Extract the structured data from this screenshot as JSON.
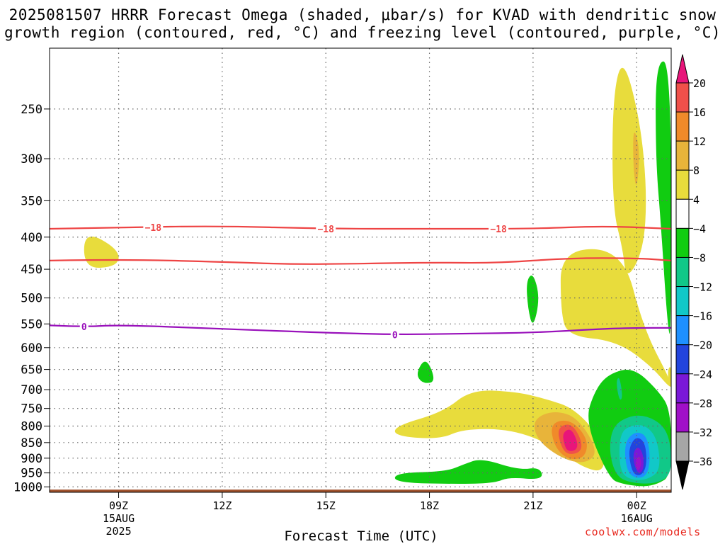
{
  "title": {
    "line1": "2025081507 HRRR Forecast Omega (shaded, μbar/s) for KVAD with dendritic snow",
    "line2": "growth region (contoured, red, °C) and freezing level (contoured, purple, °C)"
  },
  "credit": "coolwx.com/models",
  "chart_data": {
    "type": "time-height cross section",
    "title": "2025081507 HRRR Forecast Omega (shaded, μbar/s) for KVAD with dendritic snow growth region (contoured, red, °C) and freezing level (contoured, purple, °C)",
    "xlabel": "Forecast Time (UTC)",
    "ylabel": "",
    "y_scale": "log-pressure",
    "y_inverted": true,
    "ylim": [
      1020,
      200
    ],
    "xlim_hours": [
      7,
      25
    ],
    "grid": true,
    "y_ticks": [
      250,
      300,
      350,
      400,
      450,
      500,
      550,
      600,
      650,
      700,
      750,
      800,
      850,
      900,
      950,
      1000
    ],
    "x_ticks": [
      {
        "hour": 9,
        "label": "09Z",
        "sub1": "15AUG",
        "sub2": "2025"
      },
      {
        "hour": 12,
        "label": "12Z",
        "sub1": "",
        "sub2": ""
      },
      {
        "hour": 15,
        "label": "15Z",
        "sub1": "",
        "sub2": ""
      },
      {
        "hour": 18,
        "label": "18Z",
        "sub1": "",
        "sub2": ""
      },
      {
        "hour": 21,
        "label": "21Z",
        "sub1": "",
        "sub2": ""
      },
      {
        "hour": 24,
        "label": "00Z",
        "sub1": "16AUG",
        "sub2": ""
      }
    ],
    "colorbar": {
      "levels": [
        "20",
        "16",
        "12",
        "8",
        "4",
        "−4",
        "−8",
        "−12",
        "−16",
        "−20",
        "−24",
        "−28",
        "−32",
        "−36"
      ],
      "colors": [
        "#e8157a",
        "#f0504a",
        "#f08a2a",
        "#e8b43a",
        "#e8dc3c",
        "#ffffff",
        "#11cc11",
        "#11c888",
        "#11c8c8",
        "#1e90ff",
        "#2244dd",
        "#7a18d8",
        "#a010c8",
        "#a6a6a6",
        "#000000"
      ]
    },
    "contours": [
      {
        "name": "-18",
        "color": "#ee4444",
        "label": "−18",
        "points": [
          [
            7,
            388
          ],
          [
            9,
            386
          ],
          [
            12,
            384
          ],
          [
            15,
            388
          ],
          [
            18,
            388
          ],
          [
            21,
            388
          ],
          [
            23,
            384
          ],
          [
            25,
            388
          ]
        ]
      },
      {
        "name": "-12",
        "color": "#ee4444",
        "label": "",
        "points": [
          [
            7,
            436
          ],
          [
            9,
            434
          ],
          [
            12,
            438
          ],
          [
            14,
            442
          ],
          [
            16,
            441
          ],
          [
            18,
            439
          ],
          [
            20,
            440
          ],
          [
            22,
            432
          ],
          [
            24,
            432
          ],
          [
            25,
            436
          ]
        ]
      },
      {
        "name": "0",
        "color": "#9911bb",
        "label": "0",
        "points": [
          [
            7,
            553
          ],
          [
            8,
            556
          ],
          [
            9,
            552
          ],
          [
            12,
            560
          ],
          [
            15,
            568
          ],
          [
            17,
            572
          ],
          [
            19,
            570
          ],
          [
            21,
            568
          ],
          [
            23,
            560
          ],
          [
            24,
            558
          ],
          [
            25,
            558
          ]
        ]
      }
    ],
    "contour_labels": [
      {
        "text": "−18",
        "hour": 10.0,
        "p": 386
      },
      {
        "text": "−18",
        "hour": 15.0,
        "p": 388
      },
      {
        "text": "−18",
        "hour": 20.0,
        "p": 388
      },
      {
        "text": "0",
        "hour": 8.0,
        "p": 555
      },
      {
        "text": "0",
        "hour": 17.0,
        "p": 572
      }
    ],
    "shaded_regions": [
      {
        "color": "#e8dc3c",
        "points": [
          [
            8.0,
            390
          ],
          [
            9.0,
            418
          ],
          [
            9.0,
            445
          ],
          [
            8.0,
            450
          ]
        ]
      },
      {
        "color": "#e8dc3c",
        "points": [
          [
            21.8,
            418
          ],
          [
            23.6,
            418
          ],
          [
            24.2,
            560
          ],
          [
            25,
            680
          ],
          [
            25,
            700
          ],
          [
            24.4,
            640
          ],
          [
            23.4,
            585
          ],
          [
            22.0,
            575
          ],
          [
            21.8,
            525
          ]
        ]
      },
      {
        "color": "#e8dc3c",
        "points": [
          [
            23.3,
            240
          ],
          [
            23.6,
            205
          ],
          [
            24.1,
            260
          ],
          [
            24.3,
            340
          ],
          [
            24.2,
            420
          ],
          [
            23.7,
            470
          ],
          [
            23.6,
            418
          ],
          [
            23.3,
            360
          ]
        ]
      },
      {
        "color": "#e8b43a",
        "points": [
          [
            23.9,
            265
          ],
          [
            24.1,
            290
          ],
          [
            24.0,
            340
          ],
          [
            23.9,
            310
          ]
        ]
      },
      {
        "color": "#e8dc3c",
        "points": [
          [
            17.0,
            800
          ],
          [
            18.4,
            760
          ],
          [
            19.2,
            700
          ],
          [
            20.5,
            705
          ],
          [
            21.4,
            725
          ],
          [
            22.2,
            750
          ],
          [
            23.0,
            840
          ],
          [
            23.1,
            950
          ],
          [
            22.4,
            930
          ],
          [
            21.6,
            860
          ],
          [
            20.4,
            810
          ],
          [
            19.0,
            808
          ],
          [
            18.3,
            840
          ],
          [
            17.0,
            830
          ]
        ]
      },
      {
        "color": "#e8b43a",
        "points": [
          [
            21.0,
            780
          ],
          [
            21.6,
            755
          ],
          [
            22.3,
            775
          ],
          [
            22.9,
            880
          ],
          [
            22.5,
            920
          ],
          [
            21.8,
            900
          ],
          [
            21.1,
            840
          ]
        ]
      },
      {
        "color": "#f08a2a",
        "points": [
          [
            21.5,
            790
          ],
          [
            22.1,
            780
          ],
          [
            22.6,
            840
          ],
          [
            22.5,
            900
          ],
          [
            22.0,
            905
          ],
          [
            21.6,
            860
          ]
        ]
      },
      {
        "color": "#f0504a",
        "points": [
          [
            21.7,
            805
          ],
          [
            22.1,
            790
          ],
          [
            22.4,
            840
          ],
          [
            22.4,
            880
          ],
          [
            22.0,
            890
          ],
          [
            21.8,
            860
          ]
        ]
      },
      {
        "color": "#e8157a",
        "points": [
          [
            21.85,
            820
          ],
          [
            22.1,
            805
          ],
          [
            22.3,
            850
          ],
          [
            22.25,
            875
          ],
          [
            22.0,
            878
          ],
          [
            21.9,
            855
          ]
        ]
      },
      {
        "color": "#11cc11",
        "points": [
          [
            24.55,
            210
          ],
          [
            25.0,
            210
          ],
          [
            25.0,
            580
          ],
          [
            24.9,
            560
          ],
          [
            24.7,
            380
          ],
          [
            24.55,
            300
          ]
        ]
      },
      {
        "color": "#11cc11",
        "points": [
          [
            20.8,
            470
          ],
          [
            21.0,
            455
          ],
          [
            21.2,
            500
          ],
          [
            21.0,
            560
          ],
          [
            20.85,
            520
          ]
        ]
      },
      {
        "color": "#11cc11",
        "points": [
          [
            17.6,
            660
          ],
          [
            17.9,
            620
          ],
          [
            18.2,
            680
          ],
          [
            17.8,
            685
          ]
        ]
      },
      {
        "color": "#11cc11",
        "points": [
          [
            17.0,
            950
          ],
          [
            18.5,
            945
          ],
          [
            19.0,
            920
          ],
          [
            19.5,
            900
          ],
          [
            20.6,
            940
          ],
          [
            21.2,
            930
          ],
          [
            21.3,
            975
          ],
          [
            20.3,
            965
          ],
          [
            19.9,
            985
          ],
          [
            19.0,
            990
          ],
          [
            17.0,
            985
          ]
        ]
      },
      {
        "color": "#11cc11",
        "points": [
          [
            23.2,
            660
          ],
          [
            23.9,
            645
          ],
          [
            24.6,
            700
          ],
          [
            25.0,
            755
          ],
          [
            25.0,
            960
          ],
          [
            24.6,
            990
          ],
          [
            24.2,
            1000
          ],
          [
            23.6,
            990
          ],
          [
            23.2,
            970
          ],
          [
            22.5,
            785
          ],
          [
            22.8,
            700
          ]
        ]
      },
      {
        "color": "#11c888",
        "points": [
          [
            23.4,
            680
          ],
          [
            23.5,
            665
          ],
          [
            23.6,
            720
          ],
          [
            23.5,
            730
          ]
        ]
      },
      {
        "color": "#11c888",
        "points": [
          [
            23.3,
            800
          ],
          [
            23.8,
            770
          ],
          [
            24.3,
            770
          ],
          [
            24.8,
            800
          ],
          [
            25.0,
            860
          ],
          [
            25.0,
            960
          ],
          [
            24.5,
            990
          ],
          [
            23.8,
            985
          ],
          [
            23.4,
            960
          ],
          [
            23.2,
            880
          ]
        ]
      },
      {
        "color": "#11c8c8",
        "points": [
          [
            23.5,
            820
          ],
          [
            23.9,
            795
          ],
          [
            24.3,
            800
          ],
          [
            24.6,
            840
          ],
          [
            24.7,
            940
          ],
          [
            24.3,
            975
          ],
          [
            23.8,
            975
          ],
          [
            23.5,
            940
          ]
        ]
      },
      {
        "color": "#1e90ff",
        "points": [
          [
            23.7,
            840
          ],
          [
            24.0,
            815
          ],
          [
            24.3,
            830
          ],
          [
            24.4,
            900
          ],
          [
            24.3,
            960
          ],
          [
            24.0,
            970
          ],
          [
            23.75,
            950
          ],
          [
            23.65,
            890
          ]
        ]
      },
      {
        "color": "#2244dd",
        "points": [
          [
            23.8,
            860
          ],
          [
            24.0,
            830
          ],
          [
            24.25,
            850
          ],
          [
            24.3,
            920
          ],
          [
            24.15,
            960
          ],
          [
            23.9,
            955
          ],
          [
            23.78,
            900
          ]
        ]
      },
      {
        "color": "#7a18d8",
        "points": [
          [
            23.9,
            880
          ],
          [
            24.05,
            860
          ],
          [
            24.2,
            890
          ],
          [
            24.2,
            940
          ],
          [
            24.05,
            955
          ],
          [
            23.92,
            920
          ]
        ]
      },
      {
        "color": "#a010c8",
        "points": [
          [
            23.98,
            905
          ],
          [
            24.08,
            890
          ],
          [
            24.15,
            920
          ],
          [
            24.05,
            945
          ],
          [
            23.98,
            930
          ]
        ]
      },
      {
        "color": "#e8dc3c",
        "points": [
          [
            24.9,
            650
          ],
          [
            25.0,
            640
          ],
          [
            25.0,
            700
          ],
          [
            24.92,
            680
          ]
        ]
      }
    ],
    "terrain": {
      "color": "#a0522d",
      "top_p": 1010
    }
  }
}
